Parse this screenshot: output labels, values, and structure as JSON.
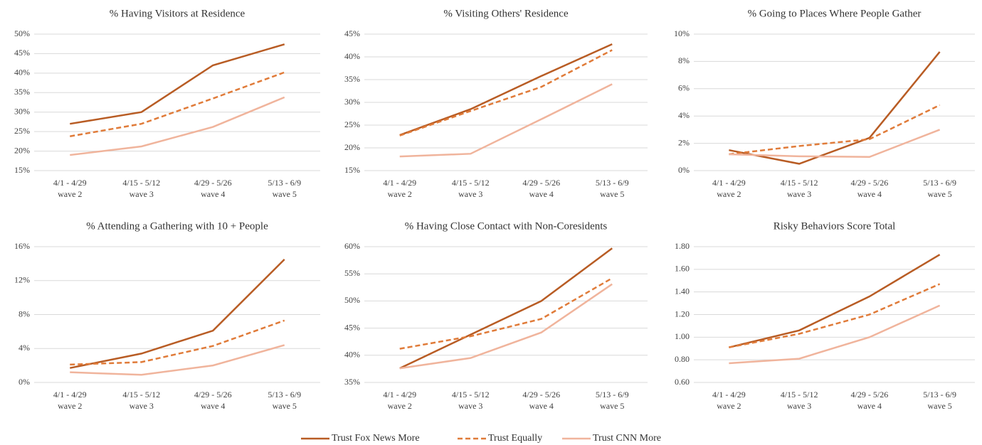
{
  "legend": [
    {
      "name": "Trust Fox News More",
      "color": "#b85c24",
      "dashed": false
    },
    {
      "name": "Trust Equally",
      "color": "#e07b39",
      "dashed": true
    },
    {
      "name": "Trust CNN More",
      "color": "#f0b49c",
      "dashed": false
    }
  ],
  "chart_data": [
    {
      "type": "line",
      "title": "% Having Visitors at Residence",
      "categories": [
        [
          "4/1 - 4/29",
          "wave 2"
        ],
        [
          "4/15 - 5/12",
          "wave 3"
        ],
        [
          "4/29 - 5/26",
          "wave 4"
        ],
        [
          "5/13 - 6/9",
          "wave 5"
        ]
      ],
      "series": [
        {
          "values": [
            27,
            30,
            42,
            47.4
          ]
        },
        {
          "values": [
            23.8,
            27,
            33.5,
            40.2
          ]
        },
        {
          "values": [
            19,
            21.2,
            26.2,
            33.8
          ]
        }
      ],
      "ylim": [
        15,
        50
      ],
      "grid": true,
      "yticks": [
        {
          "value": 15,
          "label": "15%"
        },
        {
          "value": 20,
          "label": "20%"
        },
        {
          "value": 25,
          "label": "25%"
        },
        {
          "value": 30,
          "label": "30%"
        },
        {
          "value": 35,
          "label": "35%"
        },
        {
          "value": 40,
          "label": "40%"
        },
        {
          "value": 45,
          "label": "45%"
        },
        {
          "value": 50,
          "label": "50%"
        }
      ]
    },
    {
      "type": "line",
      "title": "% Visiting Others' Residence",
      "categories": [
        [
          "4/1 - 4/29",
          "wave 2"
        ],
        [
          "4/15 - 5/12",
          "wave 3"
        ],
        [
          "4/29 - 5/26",
          "wave 4"
        ],
        [
          "5/13 - 6/9",
          "wave 5"
        ]
      ],
      "series": [
        {
          "values": [
            22.8,
            28.5,
            35.8,
            42.8
          ]
        },
        {
          "values": [
            22.7,
            28.1,
            33.4,
            41.5
          ]
        },
        {
          "values": [
            18.1,
            18.7,
            26.3,
            34
          ]
        }
      ],
      "ylim": [
        15,
        45
      ],
      "grid": true,
      "yticks": [
        {
          "value": 15,
          "label": "15%"
        },
        {
          "value": 20,
          "label": "20%"
        },
        {
          "value": 25,
          "label": "25%"
        },
        {
          "value": 30,
          "label": "30%"
        },
        {
          "value": 35,
          "label": "35%"
        },
        {
          "value": 40,
          "label": "40%"
        },
        {
          "value": 45,
          "label": "45%"
        }
      ]
    },
    {
      "type": "line",
      "title": "% Going to Places Where People Gather",
      "categories": [
        [
          "4/1 - 4/29",
          "wave 2"
        ],
        [
          "4/15 - 5/12",
          "wave 3"
        ],
        [
          "4/29 - 5/26",
          "wave 4"
        ],
        [
          "5/13 - 6/9",
          "wave 5"
        ]
      ],
      "series": [
        {
          "values": [
            1.5,
            0.5,
            2.4,
            8.7
          ]
        },
        {
          "values": [
            1.2,
            1.8,
            2.3,
            4.8
          ]
        },
        {
          "values": [
            1.2,
            1.05,
            1.0,
            3.0
          ]
        }
      ],
      "ylim": [
        0,
        10
      ],
      "grid": true,
      "yticks": [
        {
          "value": 0,
          "label": "0%"
        },
        {
          "value": 2,
          "label": "2%"
        },
        {
          "value": 4,
          "label": "4%"
        },
        {
          "value": 6,
          "label": "6%"
        },
        {
          "value": 8,
          "label": "8%"
        },
        {
          "value": 10,
          "label": "10%"
        }
      ]
    },
    {
      "type": "line",
      "title": "% Attending a Gathering with 10 + People",
      "categories": [
        [
          "4/1 - 4/29",
          "wave 2"
        ],
        [
          "4/15 - 5/12",
          "wave 3"
        ],
        [
          "4/29 - 5/26",
          "wave 4"
        ],
        [
          "5/13 - 6/9",
          "wave 5"
        ]
      ],
      "series": [
        {
          "values": [
            1.7,
            3.4,
            6.1,
            14.5
          ]
        },
        {
          "values": [
            2.1,
            2.4,
            4.3,
            7.3
          ]
        },
        {
          "values": [
            1.2,
            0.9,
            2.0,
            4.4
          ]
        }
      ],
      "ylim": [
        0,
        16
      ],
      "grid": true,
      "yticks": [
        {
          "value": 0,
          "label": "0%"
        },
        {
          "value": 4,
          "label": "4%"
        },
        {
          "value": 8,
          "label": "8%"
        },
        {
          "value": 12,
          "label": "12%"
        },
        {
          "value": 16,
          "label": "16%"
        }
      ]
    },
    {
      "type": "line",
      "title": "% Having Close Contact with Non-Coresidents",
      "categories": [
        [
          "4/1 - 4/29",
          "wave 2"
        ],
        [
          "4/15 - 5/12",
          "wave 3"
        ],
        [
          "4/29 - 5/26",
          "wave 4"
        ],
        [
          "5/13 - 6/9",
          "wave 5"
        ]
      ],
      "series": [
        {
          "values": [
            37.6,
            43.8,
            50,
            59.7
          ]
        },
        {
          "values": [
            41.2,
            43.5,
            46.7,
            54.2
          ]
        },
        {
          "values": [
            37.6,
            39.5,
            44.2,
            53.1
          ]
        }
      ],
      "ylim": [
        35,
        60
      ],
      "grid": true,
      "yticks": [
        {
          "value": 35,
          "label": "35%"
        },
        {
          "value": 40,
          "label": "40%"
        },
        {
          "value": 45,
          "label": "45%"
        },
        {
          "value": 50,
          "label": "50%"
        },
        {
          "value": 55,
          "label": "55%"
        },
        {
          "value": 60,
          "label": "60%"
        }
      ]
    },
    {
      "type": "line",
      "title": "Risky Behaviors Score Total",
      "categories": [
        [
          "4/1 - 4/29",
          "wave 2"
        ],
        [
          "4/15 - 5/12",
          "wave 3"
        ],
        [
          "4/29 - 5/26",
          "wave 4"
        ],
        [
          "5/13 - 6/9",
          "wave 5"
        ]
      ],
      "series": [
        {
          "values": [
            0.91,
            1.06,
            1.36,
            1.73
          ]
        },
        {
          "values": [
            0.91,
            1.03,
            1.2,
            1.47
          ]
        },
        {
          "values": [
            0.77,
            0.81,
            1.0,
            1.28
          ]
        }
      ],
      "ylim": [
        0.6,
        1.8
      ],
      "grid": true,
      "yticks": [
        {
          "value": 0.6,
          "label": "0.60"
        },
        {
          "value": 0.8,
          "label": "0.80"
        },
        {
          "value": 1.0,
          "label": "1.00"
        },
        {
          "value": 1.2,
          "label": "1.20"
        },
        {
          "value": 1.4,
          "label": "1.40"
        },
        {
          "value": 1.6,
          "label": "1.60"
        },
        {
          "value": 1.8,
          "label": "1.80"
        }
      ]
    }
  ]
}
